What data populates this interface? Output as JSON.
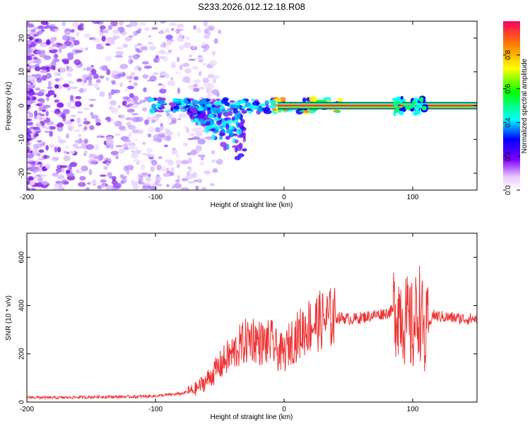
{
  "figure": {
    "title": "S233.2026.012.12.18.R08"
  },
  "chart_data": [
    {
      "type": "heatmap",
      "name": "spectrogram",
      "xlabel": "Height of straight line (km)",
      "ylabel": "Frequency (Hz)",
      "xlim": [
        -200,
        150
      ],
      "ylim": [
        -25,
        25
      ],
      "xticks": [
        -200,
        -100,
        0,
        100
      ],
      "yticks": [
        -20,
        -10,
        0,
        10,
        20
      ],
      "colorbar": {
        "label": "Normalized spectral amplitude",
        "range": [
          0,
          1
        ],
        "ticks": [
          "0.0",
          "0.2",
          "0.4",
          "0.6",
          "0.8"
        ]
      },
      "features": [
        {
          "description": "scattered noise",
          "x_range": [
            -200,
            -55
          ],
          "y_range": [
            -25,
            25
          ]
        },
        {
          "description": "carrier line",
          "x_range": [
            -100,
            150
          ],
          "y": 0
        },
        {
          "description": "descending tail",
          "x_range": [
            -75,
            -35
          ],
          "y_range": [
            -18,
            0
          ]
        }
      ]
    },
    {
      "type": "line",
      "name": "snr",
      "xlabel": "Height of straight line (km)",
      "ylabel": "SNR (10 * v/v)",
      "xlim": [
        -200,
        150
      ],
      "ylim": [
        0,
        700
      ],
      "xticks": [
        -200,
        -100,
        0,
        100
      ],
      "yticks": [
        0,
        200,
        400,
        600
      ],
      "color": "#ee3333",
      "series": [
        {
          "name": "SNR",
          "x": [
            -200,
            -180,
            -160,
            -140,
            -120,
            -100,
            -80,
            -70,
            -60,
            -50,
            -45,
            -40,
            -35,
            -30,
            -25,
            -20,
            -15,
            -10,
            -5,
            0,
            5,
            10,
            15,
            20,
            25,
            30,
            35,
            40,
            45,
            50,
            55,
            60,
            65,
            70,
            75,
            80,
            85,
            90,
            95,
            100,
            103,
            105,
            108,
            110,
            115,
            120,
            130,
            140,
            150
          ],
          "y": [
            20,
            18,
            20,
            22,
            22,
            25,
            35,
            50,
            90,
            150,
            180,
            200,
            230,
            250,
            270,
            250,
            240,
            250,
            210,
            200,
            250,
            270,
            300,
            320,
            330,
            340,
            345,
            350,
            350,
            345,
            345,
            350,
            355,
            360,
            365,
            370,
            380,
            390,
            330,
            300,
            350,
            400,
            300,
            250,
            360,
            355,
            350,
            345,
            345
          ]
        }
      ]
    }
  ]
}
